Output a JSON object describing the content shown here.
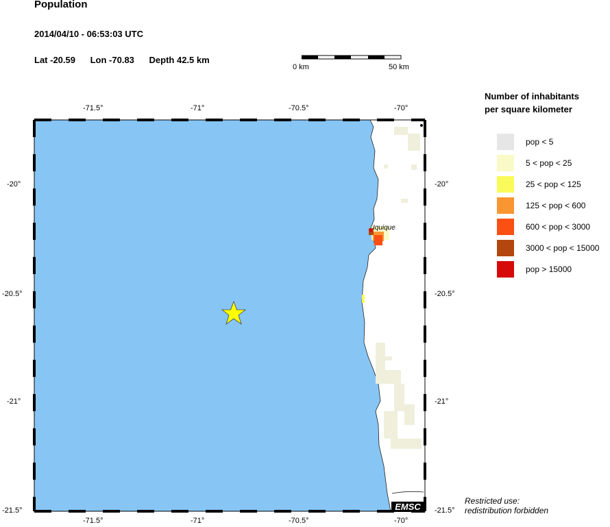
{
  "header": {
    "title": "Population",
    "datetime": "2014/04/10 - 06:53:03 UTC",
    "lat_label": "Lat -20.59",
    "lon_label": "Lon -70.83",
    "depth_label": "Depth  42.5 km"
  },
  "scale_bar": {
    "start_label": "0 km",
    "end_label": "50 km"
  },
  "map": {
    "lon_ticks": [
      "-71.5°",
      "-71°",
      "-70.5°",
      "-70°"
    ],
    "lat_ticks": [
      "-20°",
      "-20.5°",
      "-21°",
      "-21.5°"
    ],
    "epicenter": {
      "lat": -20.59,
      "lon": -70.83,
      "icon": "star-icon",
      "color": "#ffff00"
    },
    "city_label": "Iquique",
    "ocean_color": "#87c5f5",
    "logo": "EMSC"
  },
  "legend": {
    "title_line1": "Number of inhabitants",
    "title_line2": "per square kilometer",
    "items": [
      {
        "label": "pop < 5",
        "color": "#e6e6e6"
      },
      {
        "label": "5 < pop < 25",
        "color": "#fafac8"
      },
      {
        "label": "25 < pop < 125",
        "color": "#fafa5a"
      },
      {
        "label": "125 < pop < 600",
        "color": "#fa9632"
      },
      {
        "label": "600 < pop < 3000",
        "color": "#fa5014"
      },
      {
        "label": "3000 < pop < 15000",
        "color": "#b4460f"
      },
      {
        "label": "pop > 15000",
        "color": "#d70a0a"
      }
    ]
  },
  "footer": {
    "restricted_line1": "Restricted use:",
    "restricted_line2": "redistribution forbidden"
  }
}
